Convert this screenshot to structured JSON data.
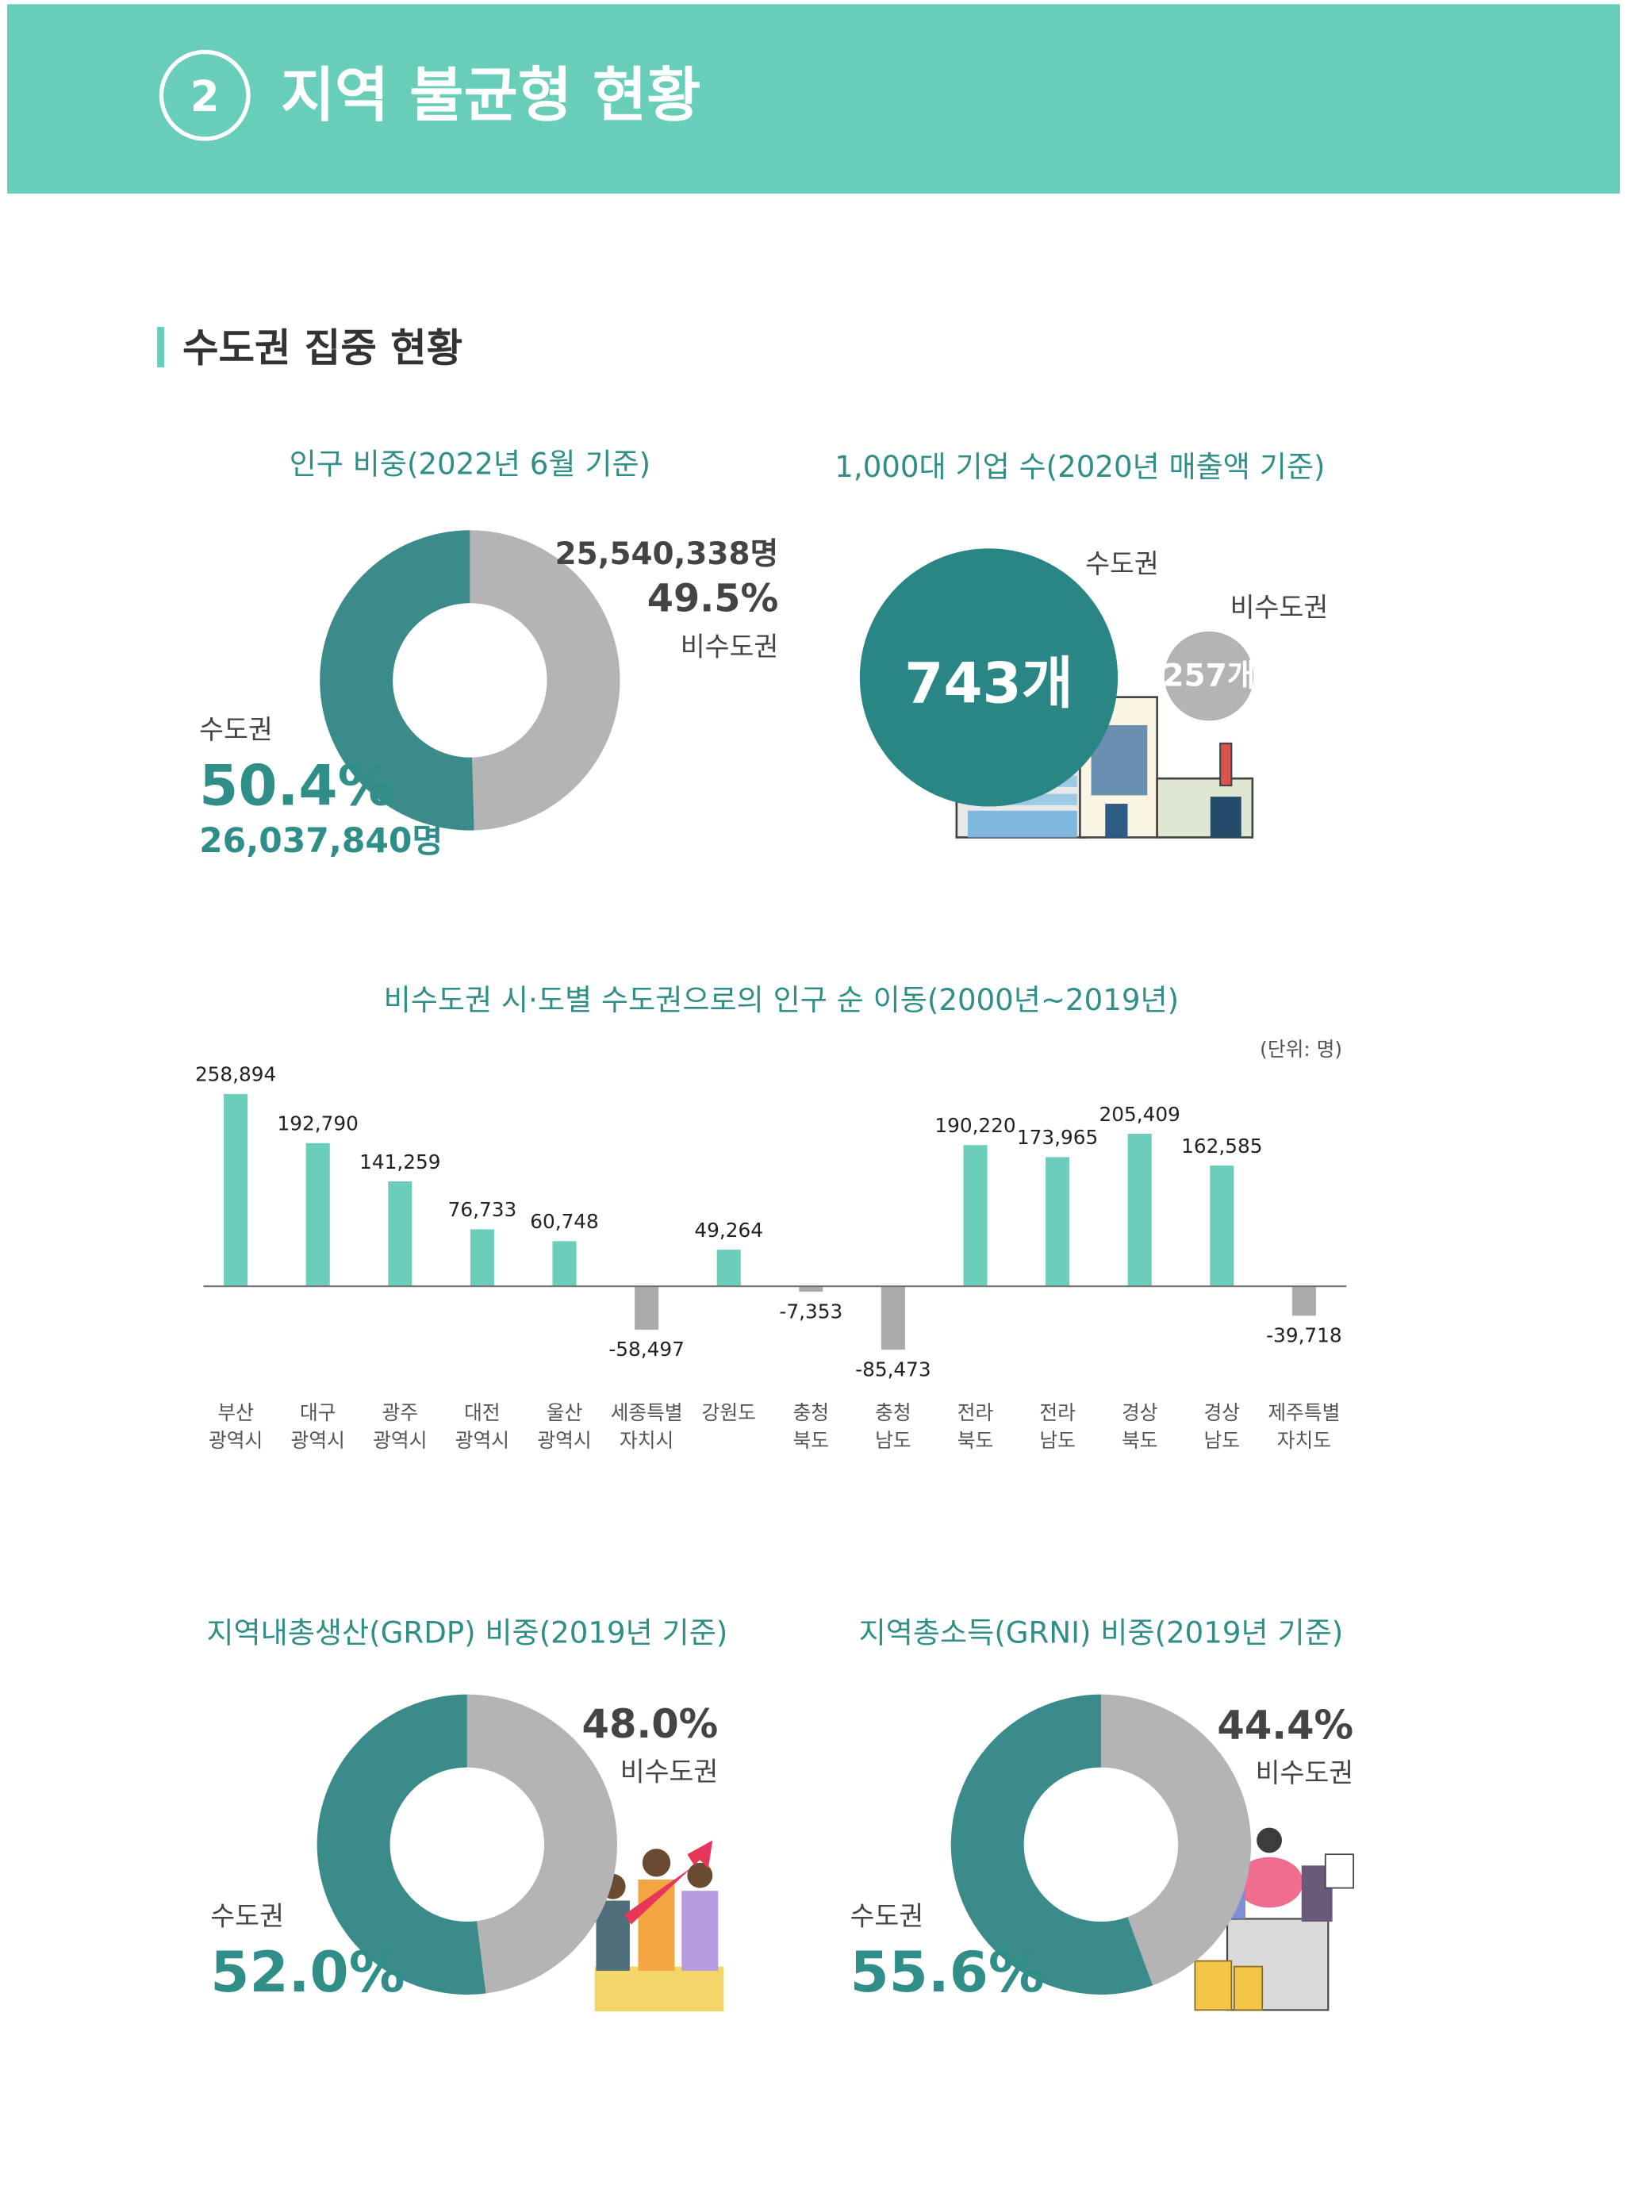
{
  "header": {
    "number": "2",
    "title": "지역 불균형 현황"
  },
  "section_title": "수도권 집중 현황",
  "chart_data": [
    {
      "type": "donut",
      "title": "인구 비중(2022년 6월 기준)",
      "categories": [
        "수도권",
        "비수도권"
      ],
      "values": [
        50.4,
        49.5
      ],
      "value_labels": [
        "50.4%",
        "49.5%"
      ],
      "population_labels": [
        "26,037,840명",
        "25,540,338명"
      ],
      "colors": [
        "#3b8b8a",
        "#b4b4b4"
      ]
    },
    {
      "type": "bubble",
      "title": "1,000대 기업 수(2020년 매출액 기준)",
      "categories": [
        "수도권",
        "비수도권"
      ],
      "values": [
        743,
        257
      ],
      "value_labels": [
        "743개",
        "257개"
      ],
      "colors": [
        "#2a8585",
        "#b4b4b4"
      ]
    },
    {
      "type": "bar",
      "title": "비수도권 시·도별 수도권으로의 인구 순 이동(2000년~2019년)",
      "unit": "(단위: 명)",
      "categories": [
        [
          "부산",
          "광역시"
        ],
        [
          "대구",
          "광역시"
        ],
        [
          "광주",
          "광역시"
        ],
        [
          "대전",
          "광역시"
        ],
        [
          "울산",
          "광역시"
        ],
        [
          "세종특별",
          "자치시"
        ],
        [
          "강원도"
        ],
        [
          "충청",
          "북도"
        ],
        [
          "충청",
          "남도"
        ],
        [
          "전라",
          "북도"
        ],
        [
          "전라",
          "남도"
        ],
        [
          "경상",
          "북도"
        ],
        [
          "경상",
          "남도"
        ],
        [
          "제주특별",
          "자치도"
        ]
      ],
      "values": [
        258894,
        192790,
        141259,
        76733,
        60748,
        -58497,
        49264,
        -7353,
        -85473,
        190220,
        173965,
        205409,
        162585,
        -39718
      ],
      "value_labels": [
        "258,894",
        "192,790",
        "141,259",
        "76,733",
        "60,748",
        "-58,497",
        "49,264",
        "-7,353",
        "-85,473",
        "190,220",
        "173,965",
        "205,409",
        "162,585",
        "-39,718"
      ],
      "ylim": [
        -100000,
        280000
      ],
      "positive_color": "#6ccdbb",
      "negative_color": "#ababab"
    },
    {
      "type": "donut",
      "title": "지역내총생산(GRDP) 비중(2019년 기준)",
      "categories": [
        "수도권",
        "비수도권"
      ],
      "values": [
        52.0,
        48.0
      ],
      "value_labels": [
        "52.0%",
        "48.0%"
      ],
      "colors": [
        "#3b8b8a",
        "#b4b4b4"
      ]
    },
    {
      "type": "donut",
      "title": "지역총소득(GRNI) 비중(2019년 기준)",
      "categories": [
        "수도권",
        "비수도권"
      ],
      "values": [
        55.6,
        44.4
      ],
      "value_labels": [
        "55.6%",
        "44.4%"
      ],
      "colors": [
        "#3b8b8a",
        "#b4b4b4"
      ]
    }
  ]
}
